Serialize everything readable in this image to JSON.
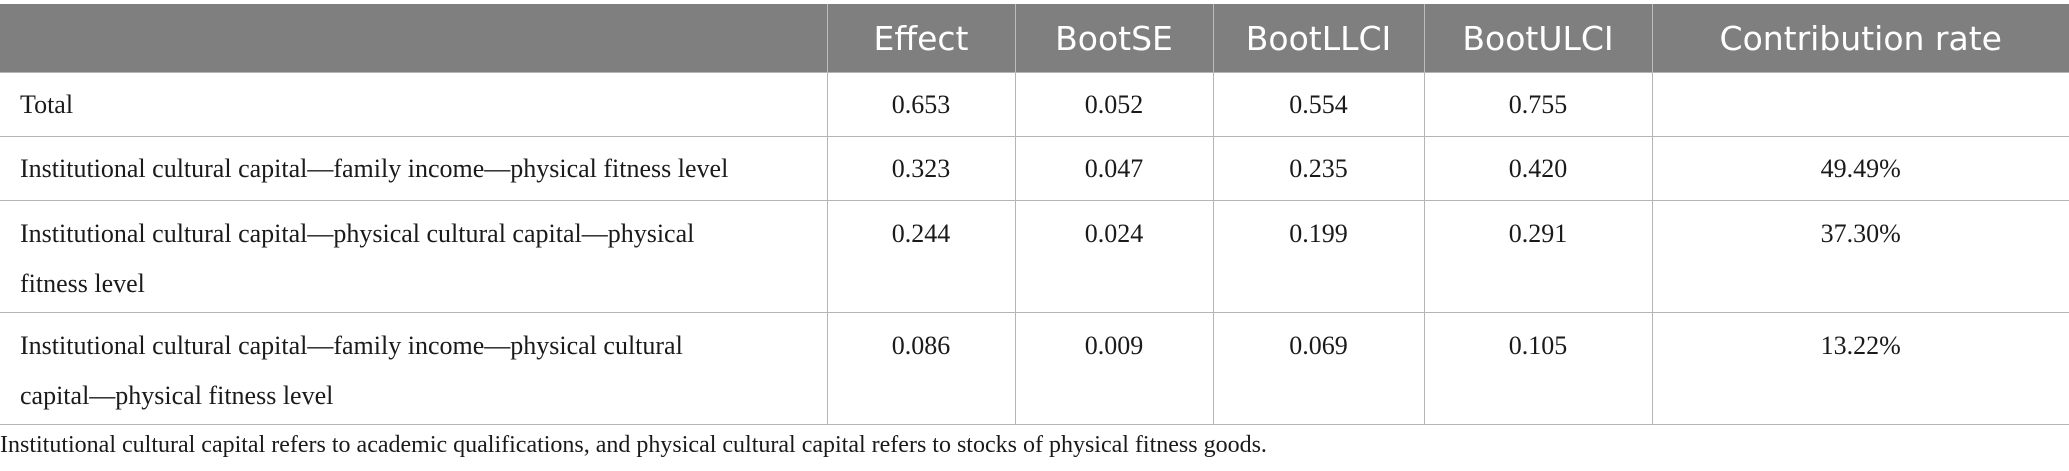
{
  "table": {
    "headers": [
      "",
      "Effect",
      "BootSE",
      "BootLLCI",
      "BootULCI",
      "Contribution rate"
    ],
    "rows": [
      {
        "label": "Total",
        "effect": "0.653",
        "bootse": "0.052",
        "bootllci": "0.554",
        "bootulci": "0.755",
        "contribution": ""
      },
      {
        "label": "Institutional cultural capital—family income—physical fitness level",
        "effect": "0.323",
        "bootse": "0.047",
        "bootllci": "0.235",
        "bootulci": "0.420",
        "contribution": "49.49%"
      },
      {
        "label_line1": "Institutional cultural capital—physical cultural capital—physical",
        "label_line2": "fitness level",
        "effect": "0.244",
        "bootse": "0.024",
        "bootllci": "0.199",
        "bootulci": "0.291",
        "contribution": "37.30%"
      },
      {
        "label_line1": "Institutional cultural capital—family income—physical cultural",
        "label_line2": "capital—physical fitness level",
        "effect": "0.086",
        "bootse": "0.009",
        "bootllci": "0.069",
        "bootulci": "0.105",
        "contribution": "13.22%"
      }
    ]
  },
  "footnote": "Institutional cultural capital refers to academic qualifications, and physical cultural capital refers to stocks of physical fitness goods.",
  "colors": {
    "header_bg": "#7f7f7f",
    "header_text": "#ffffff",
    "grid": "#b5b5b5"
  }
}
